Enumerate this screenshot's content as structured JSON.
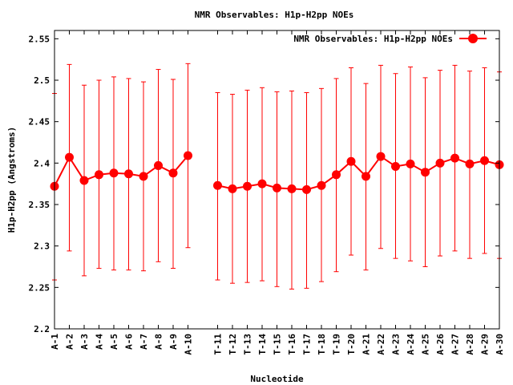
{
  "chart_data": {
    "type": "line",
    "title": "NMR Observables: H1p-H2pp NOEs",
    "xlabel": "Nucleotide",
    "ylabel": "H1p-H2pp (Angstroms)",
    "ylim": [
      2.2,
      2.56
    ],
    "yticks": [
      "2.2",
      "2.25",
      "2.3",
      "2.35",
      "2.4",
      "2.45",
      "2.5",
      "2.55"
    ],
    "grid": false,
    "legend_position": "top-right",
    "categories": [
      "A-1",
      "A-2",
      "A-3",
      "A-4",
      "A-5",
      "A-6",
      "A-7",
      "A-8",
      "A-9",
      "A-10",
      "T-11",
      "T-12",
      "T-13",
      "T-14",
      "T-15",
      "T-16",
      "T-17",
      "T-18",
      "T-19",
      "T-20",
      "A-21",
      "A-22",
      "A-23",
      "A-24",
      "A-25",
      "A-26",
      "A-27",
      "A-28",
      "A-29",
      "A-30"
    ],
    "x": [
      1,
      2,
      3,
      4,
      5,
      6,
      7,
      8,
      9,
      10,
      12,
      13,
      14,
      15,
      16,
      17,
      18,
      19,
      20,
      21,
      22,
      23,
      24,
      25,
      26,
      27,
      28,
      29,
      30,
      31
    ],
    "series": [
      {
        "name": "NMR Observables: H1p-H2pp NOEs",
        "color": "#ff0000",
        "segments": [
          [
            0,
            9
          ],
          [
            10,
            29
          ]
        ],
        "values": [
          2.372,
          2.407,
          2.379,
          2.386,
          2.388,
          2.387,
          2.384,
          2.397,
          2.388,
          2.409,
          2.373,
          2.369,
          2.372,
          2.375,
          2.37,
          2.369,
          2.368,
          2.373,
          2.386,
          2.402,
          2.384,
          2.408,
          2.396,
          2.399,
          2.389,
          2.4,
          2.406,
          2.399,
          2.403,
          2.398
        ],
        "err_low": [
          2.259,
          2.294,
          2.264,
          2.273,
          2.271,
          2.271,
          2.27,
          2.281,
          2.273,
          2.298,
          2.259,
          2.255,
          2.256,
          2.258,
          2.251,
          2.248,
          2.249,
          2.257,
          2.269,
          2.289,
          2.271,
          2.297,
          2.285,
          2.282,
          2.275,
          2.288,
          2.294,
          2.285,
          2.291,
          2.285
        ],
        "err_high": [
          2.484,
          2.519,
          2.494,
          2.5,
          2.504,
          2.502,
          2.498,
          2.513,
          2.501,
          2.52,
          2.485,
          2.483,
          2.488,
          2.491,
          2.486,
          2.487,
          2.485,
          2.49,
          2.502,
          2.515,
          2.496,
          2.518,
          2.508,
          2.516,
          2.503,
          2.512,
          2.518,
          2.511,
          2.515,
          2.51
        ]
      }
    ]
  }
}
